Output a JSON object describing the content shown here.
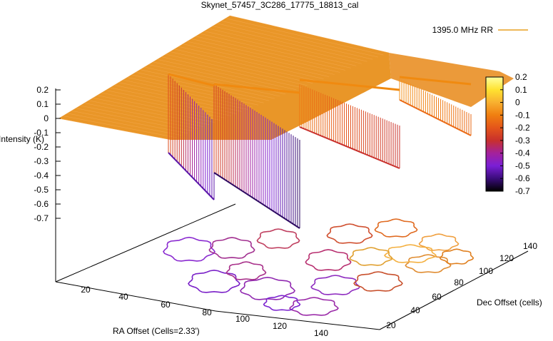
{
  "chart_data": {
    "type": "surface3d",
    "title": "Skynet_57457_3C286_17775_18813_cal",
    "zlabel": "Intensity (K)",
    "xlabel": "RA Offset (Cells=2.33')",
    "ylabel": "Dec Offset (cells)",
    "legend": {
      "label": "1395.0 MHz RR",
      "position": "top-right",
      "color": "#e8a020"
    },
    "z_ticks": [
      "0.2",
      "0.1",
      "0",
      "-0.1",
      "-0.2",
      "-0.3",
      "-0.4",
      "-0.5",
      "-0.6",
      "-0.7"
    ],
    "x_ticks": [
      "20",
      "40",
      "60",
      "80",
      "100",
      "120",
      "140"
    ],
    "y_ticks": [
      "20",
      "40",
      "60",
      "80",
      "100",
      "120",
      "140"
    ],
    "colorbar": {
      "min": -0.7,
      "max": 0.2,
      "ticks": [
        "0.2",
        "0.1",
        "0",
        "-0.1",
        "-0.2",
        "-0.3",
        "-0.4",
        "-0.5",
        "-0.6",
        "-0.7"
      ],
      "palette": [
        "#000000",
        "#3a0c7a",
        "#7a1fd6",
        "#a4219c",
        "#c8302c",
        "#e4551a",
        "#f07f10",
        "#f8b030",
        "#ffe230",
        "#ffff9e"
      ]
    },
    "surface": {
      "plateau_level": 0,
      "plateau_color": "#e8901c",
      "depressions": [
        {
          "name": "left deep region",
          "depth": -0.55
        },
        {
          "name": "center deep region",
          "depth": -0.62
        },
        {
          "name": "center-right region",
          "depth": -0.3
        },
        {
          "name": "right shallow region",
          "depth": -0.15
        }
      ]
    }
  }
}
